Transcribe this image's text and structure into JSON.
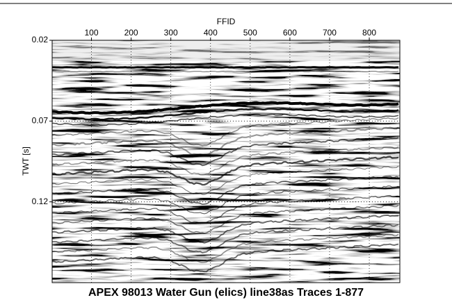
{
  "chart_data": {
    "type": "seismic",
    "title": "APEX 98013 Water Gun (elics) line38as Traces 1-877",
    "x_label": "FFID",
    "y_label": "TWT [s]",
    "xlim": [
      1,
      877
    ],
    "xticks": [
      100,
      200,
      300,
      400,
      500,
      600,
      700,
      800
    ],
    "ylim": [
      0.02,
      0.17
    ],
    "yticks": [
      0.02,
      0.07,
      0.12
    ],
    "y_inverted": true,
    "x_axis_position": "top",
    "grid": true
  }
}
